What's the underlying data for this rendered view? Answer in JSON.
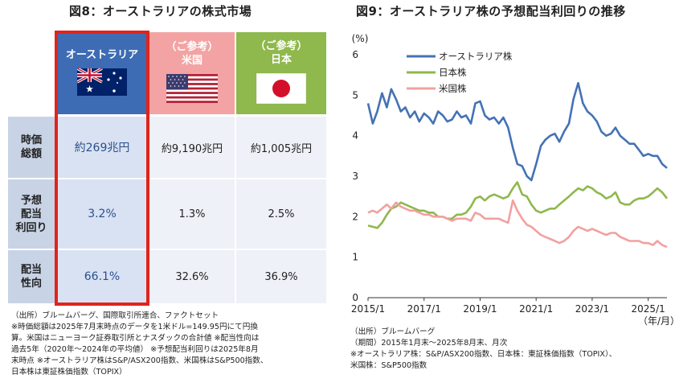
{
  "titles": {
    "left": "図8：オーストラリアの株式市場",
    "right": "図9：オーストラリア株の予想配当利回りの推移"
  },
  "market_table": {
    "columns": [
      {
        "label": "オーストラリア",
        "sub": "",
        "flag": "australia-flag"
      },
      {
        "label": "米国",
        "sub": "（ご参考）",
        "flag": "usa-flag"
      },
      {
        "label": "日本",
        "sub": "（ご参考）",
        "flag": "japan-flag"
      }
    ],
    "rows": [
      {
        "label_lines": [
          "時価",
          "総額"
        ],
        "values": [
          "約269兆円",
          "約9,190兆円",
          "約1,005兆円"
        ]
      },
      {
        "label_lines": [
          "予想",
          "配当",
          "利回り"
        ],
        "values": [
          "3.2%",
          "1.3%",
          "2.5%"
        ]
      },
      {
        "label_lines": [
          "配当",
          "性向"
        ],
        "values": [
          "66.1%",
          "32.6%",
          "36.9%"
        ]
      }
    ],
    "colors": {
      "australia": "#3d6cb4",
      "usa": "#f3a3a3",
      "japan": "#8fb84d",
      "highlight": "#e2231a"
    }
  },
  "notes_left": [
    "（出所）ブルームバーグ、国際取引所連合、ファクトセット",
    "※時価総額は2025年7月末時点のデータを1米ドル=149.95円にて円換",
    "算。米国はニューヨーク証券取引所とナスダックの合計値 ※配当性向は",
    "過去5年（2020年～2024年の平均値） ※予想配当利回りは2025年8月",
    "末時点 ※オーストラリア株はS&P/ASX200指数、米国株はS&P500指数、",
    "日本株は東証株価指数（TOPIX）"
  ],
  "notes_right": [
    "（出所）ブルームバーグ",
    "（期間）2015年1月末～2025年8月末、月次",
    "※オーストラリア株：S&P/ASX200指数、日本株：東証株価指数（TOPIX）、",
    "米国株：S&P500指数"
  ],
  "chart_data": {
    "type": "line",
    "title": "図9：オーストラリア株の予想配当利回りの推移",
    "ylabel": "(%)",
    "xlabel": "（年/月）",
    "ylim": [
      0,
      6
    ],
    "yticks": [
      "0",
      "1",
      "2",
      "3",
      "4",
      "5",
      "6"
    ],
    "xticks": [
      "2015/1",
      "2017/1",
      "2019/1",
      "2021/1",
      "2023/1",
      "2025/1"
    ],
    "xlim": [
      2015.0,
      2025.67
    ],
    "grid": false,
    "legend_position": "top-left",
    "series": [
      {
        "name": "オーストラリア株",
        "color": "#4472b4",
        "x": [
          2015.0,
          2015.17,
          2015.33,
          2015.5,
          2015.67,
          2015.83,
          2016.0,
          2016.17,
          2016.33,
          2016.5,
          2016.67,
          2016.83,
          2017.0,
          2017.17,
          2017.33,
          2017.5,
          2017.67,
          2017.83,
          2018.0,
          2018.17,
          2018.33,
          2018.5,
          2018.67,
          2018.83,
          2019.0,
          2019.17,
          2019.33,
          2019.5,
          2019.67,
          2019.83,
          2020.0,
          2020.17,
          2020.33,
          2020.5,
          2020.67,
          2020.83,
          2021.0,
          2021.17,
          2021.33,
          2021.5,
          2021.67,
          2021.83,
          2022.0,
          2022.17,
          2022.33,
          2022.5,
          2022.67,
          2022.83,
          2023.0,
          2023.17,
          2023.33,
          2023.5,
          2023.67,
          2023.83,
          2024.0,
          2024.17,
          2024.33,
          2024.5,
          2024.67,
          2024.83,
          2025.0,
          2025.17,
          2025.33,
          2025.5,
          2025.67
        ],
        "values": [
          4.8,
          4.3,
          4.6,
          5.05,
          4.7,
          5.15,
          4.9,
          4.6,
          4.7,
          4.45,
          4.6,
          4.35,
          4.55,
          4.45,
          4.3,
          4.6,
          4.5,
          4.35,
          4.4,
          4.6,
          4.45,
          4.5,
          4.3,
          4.8,
          4.85,
          4.5,
          4.4,
          4.45,
          4.3,
          4.45,
          4.2,
          3.7,
          3.3,
          3.25,
          3.0,
          2.9,
          3.3,
          3.75,
          3.9,
          4.0,
          4.05,
          3.85,
          4.1,
          4.3,
          4.9,
          5.3,
          4.8,
          4.6,
          4.5,
          4.35,
          4.1,
          4.0,
          4.05,
          4.2,
          4.0,
          3.9,
          3.8,
          3.8,
          3.65,
          3.5,
          3.55,
          3.5,
          3.5,
          3.3,
          3.2
        ]
      },
      {
        "name": "日本株",
        "color": "#8fb84d",
        "x": [
          2015.0,
          2015.17,
          2015.33,
          2015.5,
          2015.67,
          2015.83,
          2016.0,
          2016.17,
          2016.33,
          2016.5,
          2016.67,
          2016.83,
          2017.0,
          2017.17,
          2017.33,
          2017.5,
          2017.67,
          2017.83,
          2018.0,
          2018.17,
          2018.33,
          2018.5,
          2018.67,
          2018.83,
          2019.0,
          2019.17,
          2019.33,
          2019.5,
          2019.67,
          2019.83,
          2020.0,
          2020.17,
          2020.33,
          2020.5,
          2020.67,
          2020.83,
          2021.0,
          2021.17,
          2021.33,
          2021.5,
          2021.67,
          2021.83,
          2022.0,
          2022.17,
          2022.33,
          2022.5,
          2022.67,
          2022.83,
          2023.0,
          2023.17,
          2023.33,
          2023.5,
          2023.67,
          2023.83,
          2024.0,
          2024.17,
          2024.33,
          2024.5,
          2024.67,
          2024.83,
          2025.0,
          2025.17,
          2025.33,
          2025.5,
          2025.67
        ],
        "values": [
          1.78,
          1.75,
          1.72,
          1.85,
          2.05,
          2.2,
          2.25,
          2.35,
          2.3,
          2.25,
          2.2,
          2.15,
          2.15,
          2.1,
          2.1,
          2.0,
          2.0,
          1.95,
          1.95,
          2.05,
          2.05,
          2.1,
          2.25,
          2.45,
          2.5,
          2.4,
          2.5,
          2.55,
          2.5,
          2.45,
          2.5,
          2.7,
          2.85,
          2.55,
          2.5,
          2.3,
          2.15,
          2.1,
          2.15,
          2.2,
          2.2,
          2.3,
          2.4,
          2.5,
          2.6,
          2.7,
          2.65,
          2.75,
          2.7,
          2.6,
          2.55,
          2.45,
          2.5,
          2.6,
          2.35,
          2.3,
          2.3,
          2.4,
          2.45,
          2.45,
          2.5,
          2.6,
          2.7,
          2.6,
          2.45
        ]
      },
      {
        "name": "米国株",
        "color": "#f3a0a0",
        "x": [
          2015.0,
          2015.17,
          2015.33,
          2015.5,
          2015.67,
          2015.83,
          2016.0,
          2016.17,
          2016.33,
          2016.5,
          2016.67,
          2016.83,
          2017.0,
          2017.17,
          2017.33,
          2017.5,
          2017.67,
          2017.83,
          2018.0,
          2018.17,
          2018.33,
          2018.5,
          2018.67,
          2018.83,
          2019.0,
          2019.17,
          2019.33,
          2019.5,
          2019.67,
          2019.83,
          2020.0,
          2020.17,
          2020.33,
          2020.5,
          2020.67,
          2020.83,
          2021.0,
          2021.17,
          2021.33,
          2021.5,
          2021.67,
          2021.83,
          2022.0,
          2022.17,
          2022.33,
          2022.5,
          2022.67,
          2022.83,
          2023.0,
          2023.17,
          2023.33,
          2023.5,
          2023.67,
          2023.83,
          2024.0,
          2024.17,
          2024.33,
          2024.5,
          2024.67,
          2024.83,
          2025.0,
          2025.17,
          2025.33,
          2025.5,
          2025.67
        ],
        "values": [
          2.1,
          2.15,
          2.1,
          2.2,
          2.3,
          2.2,
          2.35,
          2.25,
          2.2,
          2.15,
          2.15,
          2.1,
          2.05,
          2.05,
          2.0,
          2.0,
          2.0,
          1.95,
          1.9,
          1.95,
          1.95,
          1.95,
          1.9,
          2.1,
          2.05,
          1.95,
          1.95,
          1.95,
          1.95,
          1.9,
          1.85,
          2.4,
          2.15,
          1.95,
          1.8,
          1.75,
          1.65,
          1.55,
          1.5,
          1.45,
          1.4,
          1.35,
          1.4,
          1.5,
          1.65,
          1.75,
          1.7,
          1.65,
          1.7,
          1.65,
          1.6,
          1.55,
          1.6,
          1.6,
          1.5,
          1.45,
          1.4,
          1.4,
          1.4,
          1.35,
          1.35,
          1.3,
          1.4,
          1.3,
          1.25
        ]
      }
    ]
  }
}
